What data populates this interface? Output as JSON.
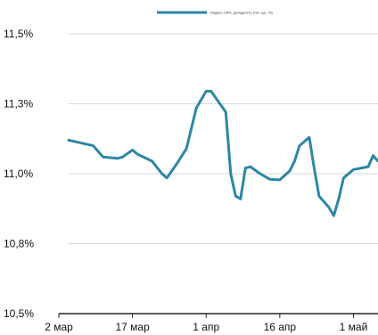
{
  "chart_data": {
    "type": "line",
    "title": "",
    "xlabel": "",
    "ylabel": "",
    "ylim": [
      10.5,
      11.5
    ],
    "y_tick_values": [
      10.5,
      10.75,
      11.0,
      11.25,
      11.5
    ],
    "y_tick_labels": [
      "10,5%",
      "10,8%",
      "11,0%",
      "11,3%",
      "11,5%"
    ],
    "x_tick_values": [
      "2024-03-02",
      "2024-03-17",
      "2024-04-01",
      "2024-04-16",
      "2024-05-01"
    ],
    "x_tick_labels": [
      "2 мар",
      "17 мар",
      "1 апр",
      "16 апр",
      "1 май"
    ],
    "x_range": [
      "2024-03-02",
      "2024-05-06"
    ],
    "grid": "horizontal",
    "legend_position": "top-center",
    "colors": {
      "series": "#2e86a6"
    },
    "series": [
      {
        "name": "Индекс ОФЗ: доходность (тек. ед., %)",
        "points": [
          {
            "x": "2024-03-04",
            "y": 11.12
          },
          {
            "x": "2024-03-09",
            "y": 11.1
          },
          {
            "x": "2024-03-11",
            "y": 11.06
          },
          {
            "x": "2024-03-14",
            "y": 11.055
          },
          {
            "x": "2024-03-15",
            "y": 11.06
          },
          {
            "x": "2024-03-17",
            "y": 11.085
          },
          {
            "x": "2024-03-18",
            "y": 11.07
          },
          {
            "x": "2024-03-21",
            "y": 11.045
          },
          {
            "x": "2024-03-23",
            "y": 11.0
          },
          {
            "x": "2024-03-24",
            "y": 10.985
          },
          {
            "x": "2024-03-26",
            "y": 11.035
          },
          {
            "x": "2024-03-28",
            "y": 11.09
          },
          {
            "x": "2024-03-30",
            "y": 11.235
          },
          {
            "x": "2024-04-01",
            "y": 11.295
          },
          {
            "x": "2024-04-02",
            "y": 11.295
          },
          {
            "x": "2024-04-05",
            "y": 11.22
          },
          {
            "x": "2024-04-06",
            "y": 11.0
          },
          {
            "x": "2024-04-07",
            "y": 10.92
          },
          {
            "x": "2024-04-08",
            "y": 10.91
          },
          {
            "x": "2024-04-09",
            "y": 11.02
          },
          {
            "x": "2024-04-10",
            "y": 11.025
          },
          {
            "x": "2024-04-12",
            "y": 11.0
          },
          {
            "x": "2024-04-14",
            "y": 10.98
          },
          {
            "x": "2024-04-16",
            "y": 10.978
          },
          {
            "x": "2024-04-18",
            "y": 11.01
          },
          {
            "x": "2024-04-19",
            "y": 11.045
          },
          {
            "x": "2024-04-20",
            "y": 11.1
          },
          {
            "x": "2024-04-22",
            "y": 11.13
          },
          {
            "x": "2024-04-23",
            "y": 11.02
          },
          {
            "x": "2024-04-24",
            "y": 10.92
          },
          {
            "x": "2024-04-26",
            "y": 10.88
          },
          {
            "x": "2024-04-27",
            "y": 10.85
          },
          {
            "x": "2024-04-28",
            "y": 10.91
          },
          {
            "x": "2024-04-29",
            "y": 10.985
          },
          {
            "x": "2024-05-01",
            "y": 11.015
          },
          {
            "x": "2024-05-04",
            "y": 11.025
          },
          {
            "x": "2024-05-05",
            "y": 11.065
          },
          {
            "x": "2024-05-06",
            "y": 11.045
          }
        ]
      }
    ]
  }
}
